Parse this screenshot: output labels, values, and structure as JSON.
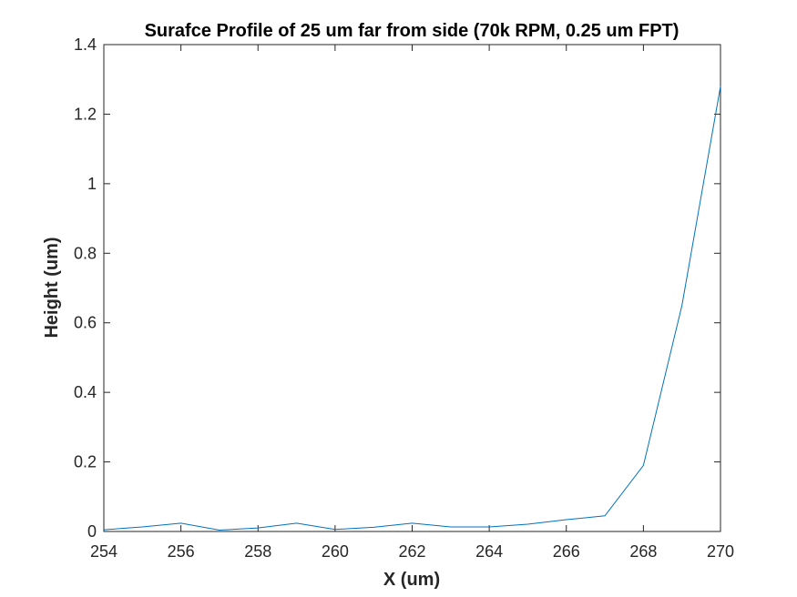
{
  "chart_data": {
    "type": "line",
    "title": "Surafce Profile of 25 um far from side (70k RPM, 0.25 um FPT)",
    "xlabel": "X (um)",
    "ylabel": "Height (um)",
    "xlim": [
      254,
      270
    ],
    "ylim": [
      0,
      1.4
    ],
    "xticks": [
      "254",
      "256",
      "258",
      "260",
      "262",
      "264",
      "266",
      "268",
      "270"
    ],
    "yticks": [
      "0",
      "0.2",
      "0.4",
      "0.6",
      "0.8",
      "1",
      "1.2",
      "1.4"
    ],
    "grid": false,
    "series": [
      {
        "color": "#0072BD",
        "x": [
          254,
          255,
          256,
          257,
          258,
          259,
          260,
          261,
          262,
          263,
          264,
          265,
          266,
          267,
          268,
          269,
          270
        ],
        "y": [
          0.005,
          0.013,
          0.024,
          0.004,
          0.01,
          0.024,
          0.006,
          0.012,
          0.024,
          0.013,
          0.013,
          0.021,
          0.034,
          0.045,
          0.19,
          0.65,
          1.28
        ]
      }
    ]
  }
}
